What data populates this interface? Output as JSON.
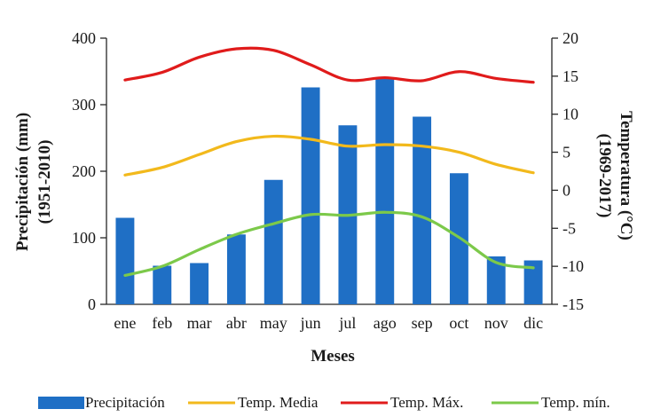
{
  "chart_data": {
    "type": "bar+line",
    "categories": [
      "ene",
      "feb",
      "mar",
      "abr",
      "may",
      "jun",
      "jul",
      "ago",
      "sep",
      "oct",
      "nov",
      "dic"
    ],
    "xlabel": "Meses",
    "y_left": {
      "label_line1": "Precipitación (mm)",
      "label_line2": "(1951-2010)",
      "range": [
        0,
        400
      ],
      "ticks": [
        0,
        100,
        200,
        300,
        400
      ]
    },
    "y_right": {
      "label_line1": "Temperatura (°C)",
      "label_line2": "(1969-2017)",
      "range": [
        -15,
        20
      ],
      "ticks": [
        -15,
        -10,
        -5,
        0,
        5,
        10,
        15,
        20
      ]
    },
    "bars": {
      "name": "Precipitación",
      "color": "#1f6fc5",
      "values": [
        130,
        58,
        62,
        105,
        187,
        326,
        269,
        340,
        282,
        197,
        72,
        66
      ]
    },
    "series": [
      {
        "name": "Temp. Media",
        "color": "#f2b91c",
        "values": [
          2.0,
          3.0,
          4.7,
          6.4,
          7.1,
          6.7,
          5.8,
          6.0,
          5.8,
          5.0,
          3.4,
          2.3
        ]
      },
      {
        "name": "Temp. Máx.",
        "color": "#e01b1b",
        "values": [
          14.5,
          15.5,
          17.5,
          18.6,
          18.4,
          16.5,
          14.5,
          14.8,
          14.4,
          15.6,
          14.7,
          14.2
        ]
      },
      {
        "name": "Temp. mín.",
        "color": "#7cc94a",
        "values": [
          -11.2,
          -10.0,
          -7.8,
          -5.8,
          -4.4,
          -3.2,
          -3.3,
          -2.9,
          -3.5,
          -6.2,
          -9.5,
          -10.2
        ]
      }
    ],
    "legend_position": "bottom"
  }
}
